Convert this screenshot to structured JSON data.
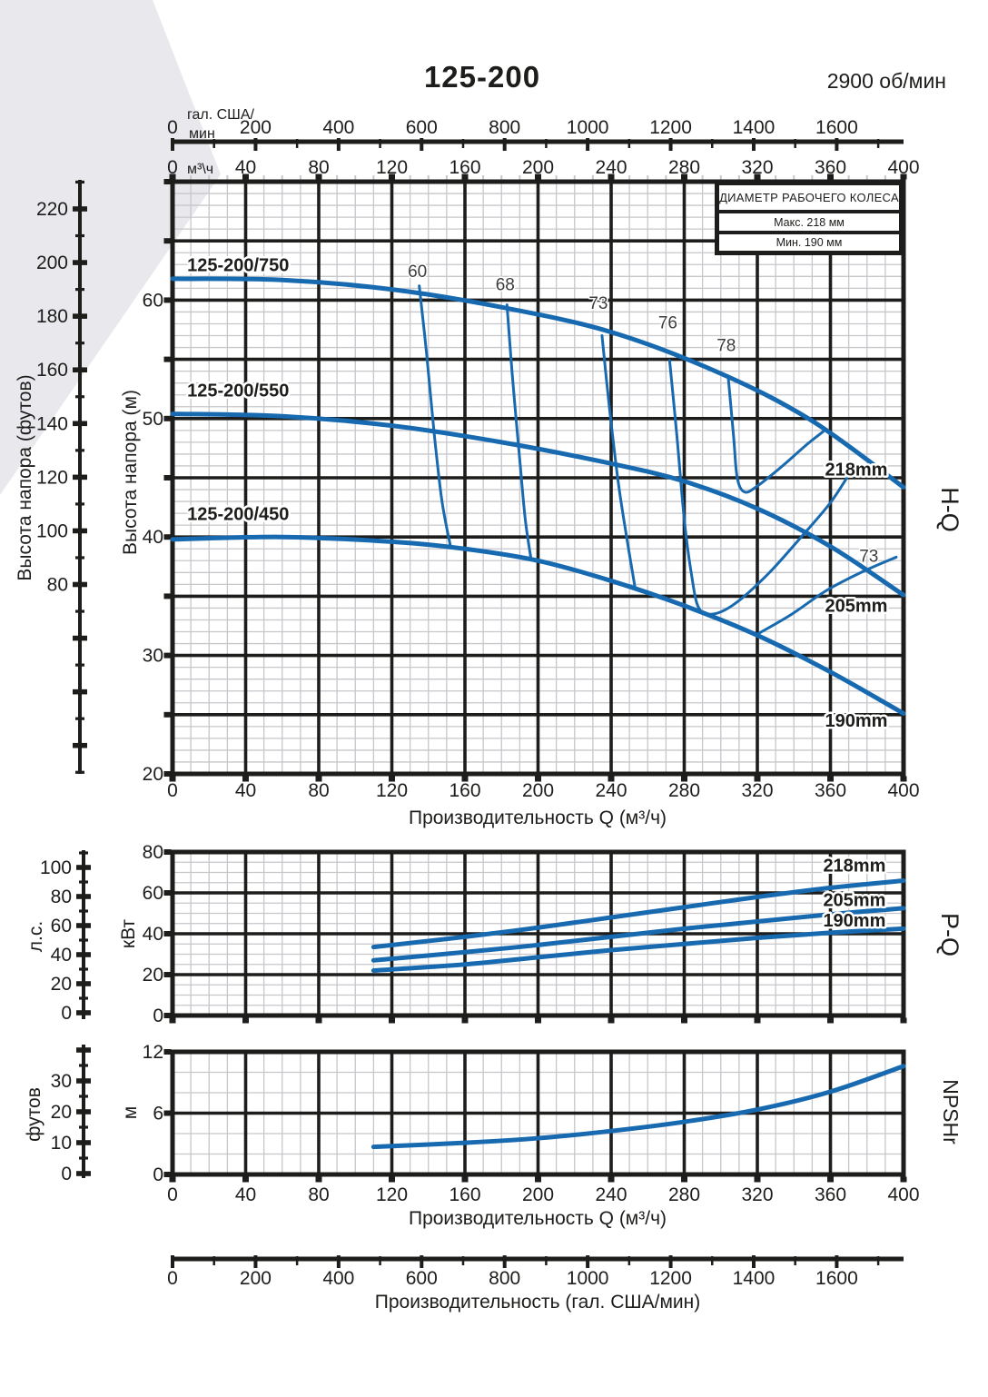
{
  "page": {
    "title": "125-200",
    "rpm_label": "2900 об/мин"
  },
  "impeller_box": {
    "title": "ДИАМЕТР РАБОЧЕГО КОЛЕСА",
    "max_label": "Макс. 218 мм",
    "min_label": "Мин. 190 мм"
  },
  "colors": {
    "curve": "#1769b0",
    "grid_major": "#1d1d1b",
    "grid_minor": "#c7c7cb",
    "text": "#1d1d1b",
    "eff_text": "#3d3d3d",
    "corner_shade": "#e9e9ed"
  },
  "flow_axis_gal": {
    "unit_line1": "гал. США/",
    "unit_line2": "мин",
    "min": 0,
    "max": 1761,
    "major_step": 200,
    "minor_step": 100,
    "tick_labels": [
      0,
      200,
      400,
      600,
      800,
      1000,
      1200,
      1400,
      1600
    ],
    "bottom_title": "Производительность (гал. США/мин)"
  },
  "chart_data": [
    {
      "id": "hq",
      "type": "line",
      "side_label": "H-Q",
      "x_axis": {
        "label": "Производительность Q (м³/ч)",
        "unit_top": "м³\\ч",
        "min": 0,
        "max": 400,
        "major": 40,
        "minor": 10,
        "tick_labels": [
          0,
          40,
          80,
          120,
          160,
          200,
          240,
          280,
          320,
          360,
          400
        ]
      },
      "y_axis": {
        "label": "Высота напора (м)",
        "min": 20,
        "max": 70,
        "major": 5,
        "minor": 1,
        "tick_labels": [
          20,
          30,
          40,
          50,
          60
        ]
      },
      "y_axis_secondary": {
        "label": "Высота напора (футов)",
        "tick_labels": [
          80,
          100,
          120,
          140,
          160,
          180,
          200,
          220
        ]
      },
      "series": [
        {
          "name": "218mm",
          "model": "125-200/750",
          "points": [
            [
              0,
              61.8
            ],
            [
              60,
              61.7
            ],
            [
              120,
              60.9
            ],
            [
              180,
              59.4
            ],
            [
              240,
              57.3
            ],
            [
              300,
              53.8
            ],
            [
              350,
              49.8
            ],
            [
              400,
              44.2
            ]
          ]
        },
        {
          "name": "205mm",
          "model": "125-200/550",
          "points": [
            [
              0,
              50.4
            ],
            [
              60,
              50.2
            ],
            [
              120,
              49.4
            ],
            [
              180,
              48.0
            ],
            [
              240,
              46.2
            ],
            [
              280,
              44.7
            ],
            [
              320,
              42.4
            ],
            [
              360,
              39.2
            ],
            [
              400,
              35.1
            ]
          ]
        },
        {
          "name": "190mm",
          "model": "125-200/450",
          "points": [
            [
              0,
              39.8
            ],
            [
              60,
              40.0
            ],
            [
              120,
              39.6
            ],
            [
              160,
              39.0
            ],
            [
              200,
              38.0
            ],
            [
              240,
              36.3
            ],
            [
              280,
              34.2
            ],
            [
              320,
              31.7
            ],
            [
              360,
              28.6
            ],
            [
              400,
              25.1
            ]
          ]
        }
      ],
      "efficiency_curves": [
        {
          "value": 60,
          "points": [
            [
              135,
              61.2
            ],
            [
              139,
              55.5
            ],
            [
              143,
              49.0
            ],
            [
              147,
              43.5
            ],
            [
              150,
              40.8
            ],
            [
              152,
              39.3
            ]
          ]
        },
        {
          "value": 68,
          "points": [
            [
              183,
              59.6
            ],
            [
              186,
              53.5
            ],
            [
              190,
              46.5
            ],
            [
              193,
              41.5
            ],
            [
              196,
              38.3
            ]
          ]
        },
        {
          "value": 73,
          "points": [
            [
              235,
              57.0
            ],
            [
              239,
              51.0
            ],
            [
              244,
              44.5
            ],
            [
              249,
              39.5
            ],
            [
              253,
              35.8
            ]
          ]
        },
        {
          "value": 76,
          "points": [
            [
              272,
              54.9
            ],
            [
              276,
              48.5
            ],
            [
              280,
              41.5
            ],
            [
              284,
              36.8
            ],
            [
              288,
              34.0
            ],
            [
              296,
              33.5
            ],
            [
              308,
              34.4
            ],
            [
              326,
              36.9
            ],
            [
              344,
              40.0
            ],
            [
              360,
              42.9
            ],
            [
              371,
              45.5
            ]
          ]
        },
        {
          "value": 78,
          "points": [
            [
              304,
              53.6
            ],
            [
              307,
              48.5
            ],
            [
              309,
              45.0
            ],
            [
              313,
              43.8
            ],
            [
              320,
              44.3
            ],
            [
              333,
              45.9
            ],
            [
              347,
              47.8
            ],
            [
              356,
              48.9
            ]
          ]
        },
        {
          "value": 73,
          "points": [
            [
              320,
              31.8
            ],
            [
              338,
              33.4
            ],
            [
              358,
              35.5
            ],
            [
              378,
              37.1
            ],
            [
              396,
              38.3
            ]
          ]
        }
      ],
      "labels": [
        {
          "text": "125-200/750",
          "x": 8,
          "y": 62.45,
          "style": "model"
        },
        {
          "text": "125-200/550",
          "x": 8,
          "y": 51.85,
          "style": "model"
        },
        {
          "text": "125-200/450",
          "x": 8,
          "y": 41.45,
          "style": "model"
        },
        {
          "text": "60",
          "x": 134,
          "y": 61.95,
          "style": "eff"
        },
        {
          "text": "68",
          "x": 182,
          "y": 60.85,
          "style": "eff"
        },
        {
          "text": "73",
          "x": 233,
          "y": 59.25,
          "style": "eff"
        },
        {
          "text": "76",
          "x": 271,
          "y": 57.6,
          "style": "eff"
        },
        {
          "text": "78",
          "x": 303,
          "y": 55.7,
          "style": "eff"
        },
        {
          "text": "73",
          "x": 381,
          "y": 37.9,
          "style": "eff"
        },
        {
          "text": "218mm",
          "x": 357,
          "y": 45.2,
          "style": "mm"
        },
        {
          "text": "205mm",
          "x": 357,
          "y": 33.7,
          "style": "mm"
        },
        {
          "text": "190mm",
          "x": 357,
          "y": 24.0,
          "style": "mm"
        }
      ]
    },
    {
      "id": "pq",
      "type": "line",
      "side_label": "P-Q",
      "x_axis": {
        "min": 0,
        "max": 400,
        "major": 40,
        "minor": 10,
        "tick_labels": []
      },
      "y_axis": {
        "label": "кВт",
        "min": 0,
        "max": 80,
        "major": 20,
        "minor": 5,
        "tick_labels": [
          0,
          20,
          40,
          60,
          80
        ]
      },
      "y_axis_secondary": {
        "label": "л.с.",
        "tick_labels": [
          0,
          20,
          40,
          60,
          80,
          100
        ]
      },
      "series": [
        {
          "name": "218mm",
          "points": [
            [
              110,
              33.5
            ],
            [
              160,
              38.5
            ],
            [
              200,
              43
            ],
            [
              240,
              48
            ],
            [
              280,
              53
            ],
            [
              320,
              58
            ],
            [
              360,
              62.5
            ],
            [
              400,
              66
            ]
          ]
        },
        {
          "name": "205mm",
          "points": [
            [
              110,
              27
            ],
            [
              160,
              31
            ],
            [
              200,
              34.5
            ],
            [
              240,
              38.5
            ],
            [
              280,
              42.5
            ],
            [
              320,
              46
            ],
            [
              360,
              49.5
            ],
            [
              400,
              52.5
            ]
          ]
        },
        {
          "name": "190mm",
          "points": [
            [
              110,
              22
            ],
            [
              160,
              25
            ],
            [
              200,
              28.5
            ],
            [
              240,
              32
            ],
            [
              280,
              35
            ],
            [
              320,
              38
            ],
            [
              360,
              40.5
            ],
            [
              400,
              42.5
            ]
          ]
        }
      ],
      "efficiency_curves": [],
      "labels": [
        {
          "text": "218mm",
          "x": 356,
          "y": 70.5,
          "style": "mm"
        },
        {
          "text": "205mm",
          "x": 356,
          "y": 53.5,
          "style": "mm"
        },
        {
          "text": "190mm",
          "x": 356,
          "y": 43.5,
          "style": "mm"
        }
      ]
    },
    {
      "id": "np",
      "type": "line",
      "side_label": "NPSHr",
      "x_axis": {
        "label": "Производительность Q (м³/ч)",
        "min": 0,
        "max": 400,
        "major": 40,
        "minor": 10,
        "tick_labels": [
          0,
          40,
          80,
          120,
          160,
          200,
          240,
          280,
          320,
          360,
          400
        ]
      },
      "y_axis": {
        "label": "м",
        "min": 0,
        "max": 12,
        "major": 6,
        "minor": 2,
        "tick_labels": [
          0,
          6,
          12
        ]
      },
      "y_axis_secondary": {
        "label": "футов",
        "tick_labels": [
          0,
          10,
          20,
          30
        ]
      },
      "series": [
        {
          "name": "NPSHr",
          "points": [
            [
              110,
              2.7
            ],
            [
              160,
              3.1
            ],
            [
              200,
              3.55
            ],
            [
              240,
              4.25
            ],
            [
              280,
              5.15
            ],
            [
              320,
              6.35
            ],
            [
              360,
              8.1
            ],
            [
              400,
              10.6
            ]
          ]
        }
      ],
      "efficiency_curves": [],
      "labels": []
    }
  ]
}
